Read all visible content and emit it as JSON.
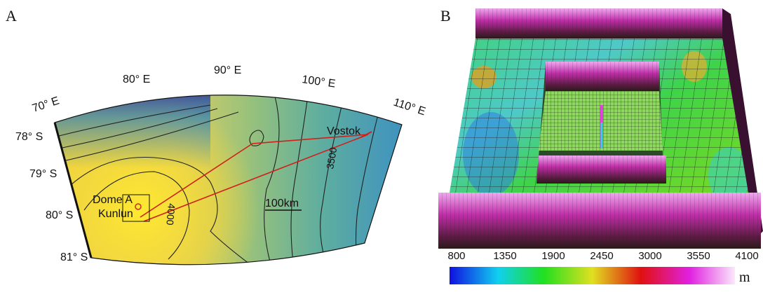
{
  "panel_a": {
    "label": "A",
    "longitude_labels": [
      "70° E",
      "80° E",
      "90° E",
      "100° E",
      "110° E"
    ],
    "latitude_labels": [
      "78° S",
      "79° S",
      "80° S",
      "81° S"
    ],
    "places": [
      "Dome A",
      "Kunlun",
      "Vostok"
    ],
    "scale_bar": "100km",
    "contour_labels": [
      "4000",
      "3500"
    ]
  },
  "panel_b": {
    "label": "B",
    "colorbar": {
      "ticks": [
        800,
        1350,
        1900,
        2450,
        3000,
        3550,
        4100
      ],
      "unit": "m"
    }
  }
}
